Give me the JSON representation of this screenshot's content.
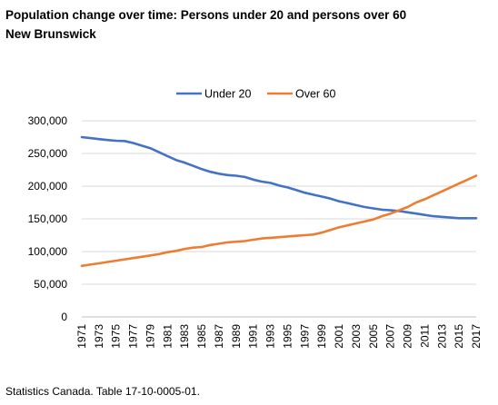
{
  "title_line1": "Population change over time: Persons under 20 and persons over 60",
  "title_line2": "New Brunswick",
  "source": "Statistics Canada. Table 17-10-0005-01.",
  "chart_data": {
    "type": "line",
    "x": [
      1971,
      1972,
      1973,
      1974,
      1975,
      1976,
      1977,
      1978,
      1979,
      1980,
      1981,
      1982,
      1983,
      1984,
      1985,
      1986,
      1987,
      1988,
      1989,
      1990,
      1991,
      1992,
      1993,
      1994,
      1995,
      1996,
      1997,
      1998,
      1999,
      2000,
      2001,
      2002,
      2003,
      2004,
      2005,
      2006,
      2007,
      2008,
      2009,
      2010,
      2011,
      2012,
      2013,
      2014,
      2015,
      2016,
      2017
    ],
    "x_tick_labels": [
      "1971",
      "1973",
      "1975",
      "1977",
      "1979",
      "1981",
      "1983",
      "1985",
      "1987",
      "1989",
      "1991",
      "1993",
      "1995",
      "1997",
      "1999",
      "2001",
      "2003",
      "2005",
      "2007",
      "2009",
      "2011",
      "2013",
      "2015",
      "2017"
    ],
    "y_tick_labels": [
      "0",
      "50,000",
      "100,000",
      "150,000",
      "200,000",
      "250,000",
      "300,000"
    ],
    "ylim": [
      0,
      300000
    ],
    "grid": "horizontal",
    "legend_position": "top",
    "series": [
      {
        "name": "Under 20",
        "color": "#4472C4",
        "values": [
          275000,
          273500,
          272000,
          270500,
          269500,
          269000,
          266000,
          262000,
          258000,
          252000,
          246000,
          240000,
          236000,
          231000,
          226000,
          222000,
          219000,
          217000,
          216000,
          214000,
          210000,
          207000,
          205000,
          201000,
          198000,
          194000,
          190000,
          187000,
          184000,
          181000,
          177000,
          174000,
          171000,
          168000,
          166000,
          164000,
          163000,
          162000,
          160000,
          158000,
          156000,
          154000,
          153000,
          152000,
          151000,
          151000,
          151000
        ]
      },
      {
        "name": "Over 60",
        "color": "#ED7D31",
        "values": [
          78000,
          80000,
          82000,
          84000,
          86000,
          88000,
          90000,
          92000,
          94000,
          96000,
          99000,
          101000,
          104000,
          106000,
          107000,
          110000,
          112000,
          114000,
          115000,
          116000,
          118000,
          120000,
          121000,
          122000,
          123000,
          124000,
          125000,
          126000,
          129000,
          133000,
          137000,
          140000,
          143000,
          146000,
          149000,
          154000,
          158000,
          163000,
          168000,
          175000,
          180000,
          186000,
          192000,
          198000,
          204000,
          210000,
          216000
        ]
      }
    ]
  }
}
